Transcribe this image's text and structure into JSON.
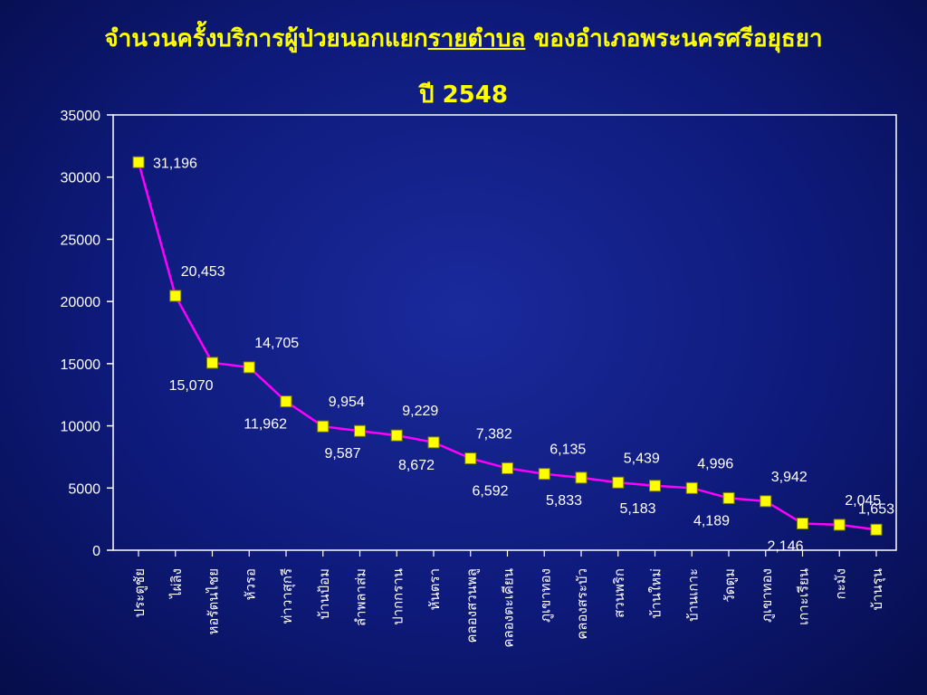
{
  "title": {
    "prefix": "จำนวนครั้งบริการผู้ป่วยนอกแยก",
    "emphasis": "รายตำบล",
    "suffix": " ของอำเภอพระนครศรีอยุธยา",
    "year_line": "ปี 2548"
  },
  "colors": {
    "line": "#ff00ff",
    "marker_fill": "#ffff00",
    "marker_stroke": "#808000",
    "axis": "#ffffff",
    "title": "#ffff00"
  },
  "chart_data": {
    "type": "line",
    "ylim": [
      0,
      35000
    ],
    "yticks": [
      "0",
      "5000",
      "10000",
      "15000",
      "20000",
      "25000",
      "30000",
      "35000"
    ],
    "grid": false,
    "categories": [
      "ประตูชัย",
      "ไผ่ลิง",
      "หอรัตนไชย",
      "หัวรอ",
      "ท่าวาสุกรี",
      "บ้านป้อม",
      "ลำพลาส่ม",
      "ปากกราน",
      "หันตรา",
      "คลองสวนพลู",
      "คลองตะเคียน",
      "ภูเขาทอง",
      "คลองสระบัว",
      "สวนพริก",
      "บ้านใหม่",
      "บ้านเกาะ",
      "วัดตูม",
      "ภูเขาทอง",
      "เกาะเรียน",
      "กะมัง",
      "บ้านรุน"
    ],
    "series": [
      {
        "values": [
          31196,
          20453,
          15070,
          14705,
          11962,
          9954,
          9587,
          9229,
          8672,
          7382,
          6592,
          6135,
          5833,
          5439,
          5183,
          4996,
          4189,
          3942,
          2146,
          2045,
          1653
        ]
      }
    ],
    "point_labels": [
      "31,196",
      "20,453",
      "15,070",
      "14,705",
      "11,962",
      "9,954",
      "9,587",
      "9,229",
      "8,672",
      "7,382",
      "6,592",
      "6,135",
      "5,833",
      "5,439",
      "5,183",
      "4,996",
      "4,189",
      "3,942",
      "2,146",
      "2,045",
      "1,653"
    ]
  }
}
